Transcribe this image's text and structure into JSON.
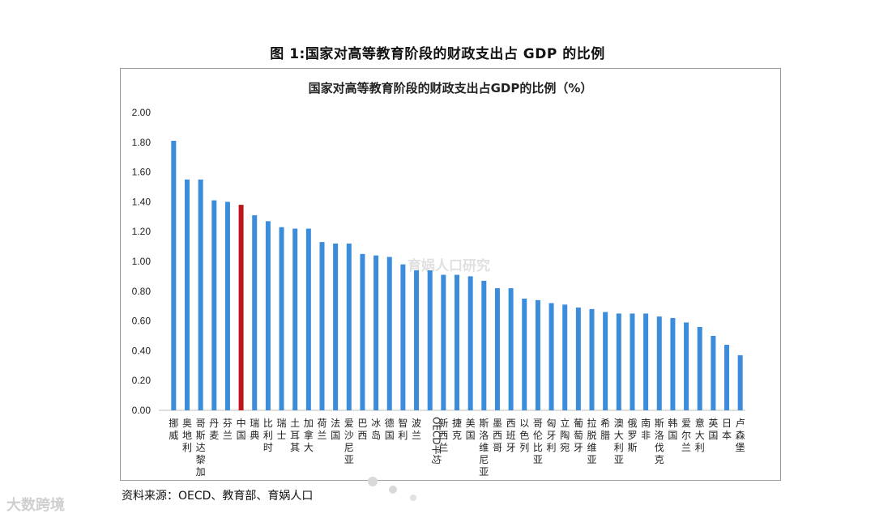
{
  "figure_title": "图 1:国家对高等教育阶段的财政支出占 GDP 的比例",
  "source_text": "资料来源：OECD、教育部、育娲人口",
  "watermark_text": "育娲人口研究",
  "brand_text": "大数跨境",
  "colors": {
    "bar": "#3b8cdb",
    "highlight": "#c0161b",
    "axis": "#bfbfbf",
    "frame": "#9a9a9a"
  },
  "chart_data": {
    "type": "bar",
    "title": "国家对高等教育阶段的财政支出占GDP的比例（%）",
    "xlabel": "",
    "ylabel": "",
    "ylim": [
      0,
      2.0
    ],
    "yticks": [
      "0.00",
      "0.20",
      "0.40",
      "0.60",
      "0.80",
      "1.00",
      "1.20",
      "1.40",
      "1.60",
      "1.80",
      "2.00"
    ],
    "grid": false,
    "highlight_category": "中国",
    "categories": [
      "挪威",
      "奥地利",
      "哥斯达黎加",
      "丹麦",
      "芬兰",
      "中国",
      "瑞典",
      "比利时",
      "瑞士",
      "土耳其",
      "加拿大",
      "荷兰",
      "法国",
      "爱沙尼亚",
      "巴西",
      "冰岛",
      "德国",
      "智利",
      "波兰",
      "OECD平均",
      "新西兰",
      "捷克",
      "美国",
      "斯洛维尼亚",
      "墨西哥",
      "西班牙",
      "以色列",
      "哥伦比亚",
      "匈牙利",
      "立陶宛",
      "葡萄牙",
      "拉脱维亚",
      "希腊",
      "澳大利亚",
      "俄罗斯",
      "南非",
      "斯洛伐克",
      "韩国",
      "爱尔兰",
      "意大利",
      "英国",
      "日本",
      "卢森堡"
    ],
    "values": [
      1.81,
      1.55,
      1.55,
      1.41,
      1.4,
      1.38,
      1.31,
      1.27,
      1.23,
      1.22,
      1.22,
      1.13,
      1.12,
      1.12,
      1.05,
      1.04,
      1.03,
      0.98,
      0.94,
      0.94,
      0.91,
      0.91,
      0.9,
      0.87,
      0.82,
      0.82,
      0.75,
      0.74,
      0.72,
      0.71,
      0.69,
      0.68,
      0.66,
      0.65,
      0.65,
      0.65,
      0.63,
      0.62,
      0.59,
      0.56,
      0.5,
      0.44,
      0.37
    ]
  }
}
